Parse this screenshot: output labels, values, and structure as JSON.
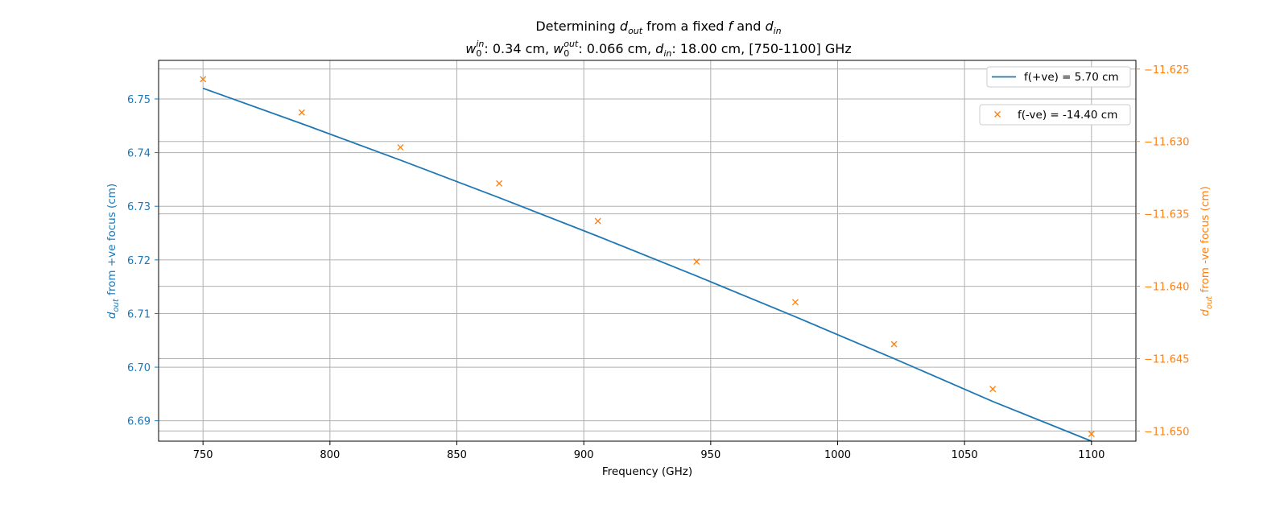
{
  "colors": {
    "primary": "#1f77b4",
    "secondary": "#ff7f0e",
    "grid": "#b0b0b0",
    "text": "#000000"
  },
  "chart_data": {
    "type": "line",
    "title_line1": {
      "pre": "Determining ",
      "var1": "d",
      "var1_sub": "out",
      "mid": " from a fixed ",
      "var2": "f",
      "and": " and ",
      "var3": "d",
      "var3_sub": "in"
    },
    "title_line2": {
      "w_in": "w",
      "w_in_sub": "0",
      "w_in_sup": "in",
      "w_in_val": ": 0.34 cm, ",
      "w_out": "w",
      "w_out_sub": "0",
      "w_out_sup": "out",
      "w_out_val": ": 0.066 cm, ",
      "d_in": "d",
      "d_in_sub": "in",
      "d_in_val": ": 18.00 cm, [750-1100] GHz"
    },
    "xlabel": "Frequency (GHz)",
    "ylabel_left": {
      "var": "d",
      "sub": "out",
      "rest": " from +ve focus (cm)"
    },
    "ylabel_right": {
      "var": "d",
      "sub": "out",
      "rest": " from -ve focus (cm)"
    },
    "xlim": [
      732.5,
      1117.5
    ],
    "ylim_left": [
      6.6862,
      6.7572
    ],
    "ylim_right": [
      -11.6507,
      -11.6244
    ],
    "xticks": [
      750,
      800,
      850,
      900,
      950,
      1000,
      1050,
      1100
    ],
    "xtick_labels": [
      "750",
      "800",
      "850",
      "900",
      "950",
      "1000",
      "1050",
      "1100"
    ],
    "yticks_left": [
      6.69,
      6.7,
      6.71,
      6.72,
      6.73,
      6.74,
      6.75
    ],
    "ytick_labels_left": [
      "6.69",
      "6.70",
      "6.71",
      "6.72",
      "6.73",
      "6.74",
      "6.75"
    ],
    "yticks_right": [
      -11.65,
      -11.645,
      -11.64,
      -11.635,
      -11.63,
      -11.625
    ],
    "ytick_labels_right": [
      "−11.650",
      "−11.645",
      "−11.640",
      "−11.635",
      "−11.630",
      "−11.625"
    ],
    "grid": true,
    "legend_position": "top-right",
    "series": [
      {
        "name": "f(+ve) = 5.70 cm",
        "axis": "left",
        "style": "line",
        "x": [
          750,
          788.89,
          827.78,
          866.67,
          905.56,
          944.44,
          983.33,
          1022.22,
          1061.11,
          1100
        ],
        "y": [
          6.752,
          6.7454,
          6.7386,
          6.7316,
          6.7244,
          6.717,
          6.7094,
          6.7016,
          6.6936,
          6.6862
        ]
      },
      {
        "name": "f(-ve) = -14.40 cm",
        "axis": "right",
        "style": "x-marker",
        "x": [
          750,
          788.89,
          827.78,
          866.67,
          905.56,
          944.44,
          983.33,
          1022.22,
          1061.11,
          1100
        ],
        "y": [
          -11.6257,
          -11.628,
          -11.6304,
          -11.6329,
          -11.6355,
          -11.6383,
          -11.6411,
          -11.644,
          -11.6471,
          -11.6502
        ]
      }
    ]
  }
}
